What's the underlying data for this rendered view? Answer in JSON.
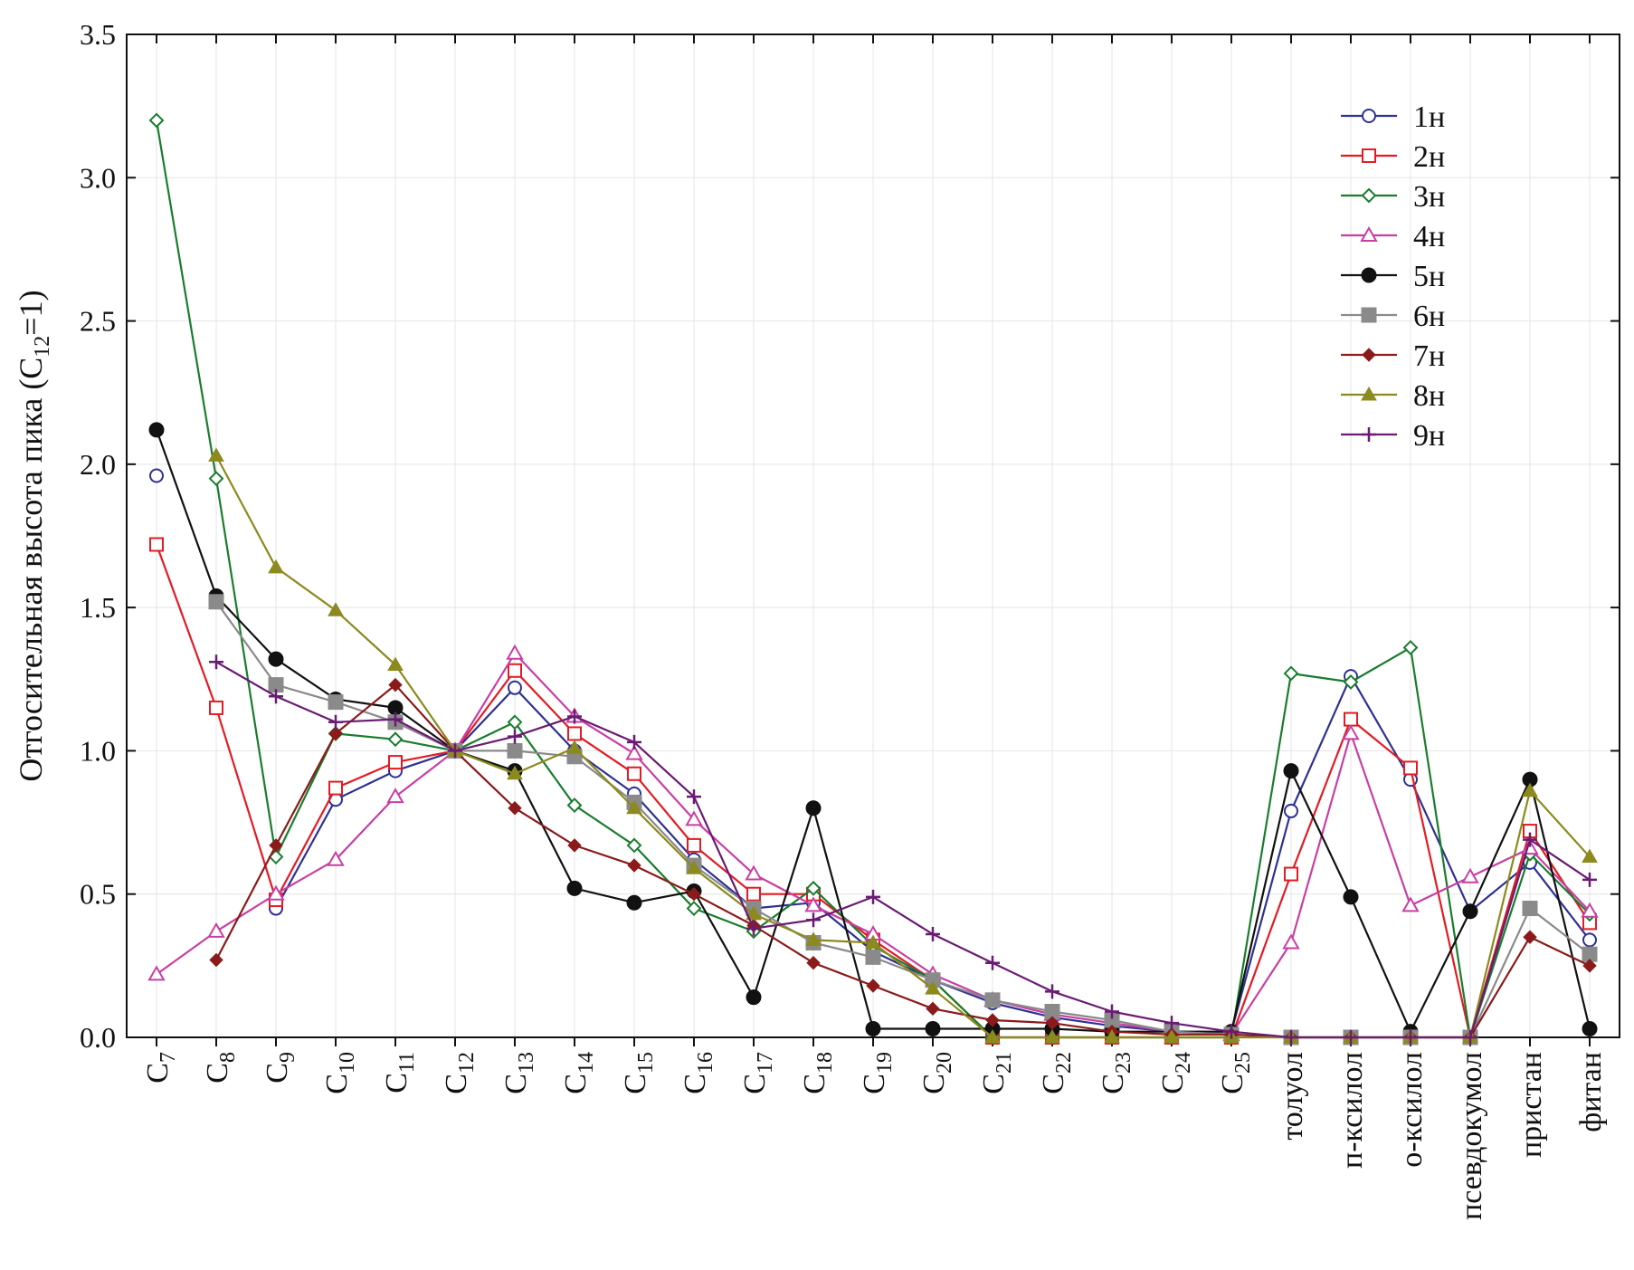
{
  "chart_data": {
    "type": "line",
    "ylabel": {
      "main": "Отгосительная высота пика (C",
      "sub": "12",
      "tail": "=1)"
    },
    "ylim": [
      0.0,
      3.5
    ],
    "yticks": [
      "0.0",
      "0.5",
      "1.0",
      "1.5",
      "2.0",
      "2.5",
      "3.0",
      "3.5"
    ],
    "ytick_values": [
      0,
      0.5,
      1.0,
      1.5,
      2.0,
      2.5,
      3.0,
      3.5
    ],
    "grid": true,
    "legend_position": "top-right",
    "categories": [
      {
        "base": "C",
        "sub": "7"
      },
      {
        "base": "C",
        "sub": "8"
      },
      {
        "base": "C",
        "sub": "9"
      },
      {
        "base": "C",
        "sub": "10"
      },
      {
        "base": "C",
        "sub": "11"
      },
      {
        "base": "C",
        "sub": "12"
      },
      {
        "base": "C",
        "sub": "13"
      },
      {
        "base": "C",
        "sub": "14"
      },
      {
        "base": "C",
        "sub": "15"
      },
      {
        "base": "C",
        "sub": "16"
      },
      {
        "base": "C",
        "sub": "17"
      },
      {
        "base": "C",
        "sub": "18"
      },
      {
        "base": "C",
        "sub": "19"
      },
      {
        "base": "C",
        "sub": "20"
      },
      {
        "base": "C",
        "sub": "21"
      },
      {
        "base": "C",
        "sub": "22"
      },
      {
        "base": "C",
        "sub": "23"
      },
      {
        "base": "C",
        "sub": "24"
      },
      {
        "base": "C",
        "sub": "25"
      },
      {
        "base": "толуол",
        "sub": ""
      },
      {
        "base": "п-ксилол",
        "sub": ""
      },
      {
        "base": "о-ксилол",
        "sub": ""
      },
      {
        "base": "псевдокумол",
        "sub": ""
      },
      {
        "base": "пристан",
        "sub": ""
      },
      {
        "base": "фитан",
        "sub": ""
      }
    ],
    "series": [
      {
        "name": "1н",
        "color": "#2e3192",
        "marker": "circle-open",
        "values": [
          1.96,
          null,
          0.45,
          0.83,
          0.93,
          1.0,
          1.22,
          1.0,
          0.85,
          0.62,
          0.45,
          0.47,
          0.3,
          0.2,
          0.12,
          0.07,
          0.04,
          0.02,
          0.02,
          0.79,
          1.26,
          0.9,
          0.44,
          0.61,
          0.34
        ]
      },
      {
        "name": "2н",
        "color": "#e31b23",
        "marker": "square-open",
        "values": [
          1.72,
          1.15,
          0.48,
          0.87,
          0.96,
          1.0,
          1.28,
          1.06,
          0.92,
          0.67,
          0.5,
          0.5,
          0.34,
          0.2,
          0.0,
          0.0,
          0.0,
          0.0,
          0.0,
          0.57,
          1.11,
          0.94,
          0.0,
          0.72,
          0.4
        ]
      },
      {
        "name": "3н",
        "color": "#1a7d2e",
        "marker": "diamond-open",
        "values": [
          3.2,
          1.95,
          0.63,
          1.06,
          1.04,
          1.0,
          1.1,
          0.81,
          0.67,
          0.45,
          0.37,
          0.52,
          0.32,
          0.2,
          0.0,
          0.0,
          0.0,
          0.0,
          0.0,
          1.27,
          1.24,
          1.36,
          0.0,
          0.64,
          0.43
        ]
      },
      {
        "name": "4н",
        "color": "#c83fa3",
        "marker": "triangle-open",
        "values": [
          0.22,
          0.37,
          0.5,
          0.62,
          0.84,
          1.0,
          1.34,
          1.12,
          0.99,
          0.76,
          0.57,
          0.46,
          0.36,
          0.22,
          0.13,
          0.08,
          0.05,
          0.02,
          0.01,
          0.33,
          1.06,
          0.46,
          0.56,
          0.66,
          0.44
        ]
      },
      {
        "name": "5н",
        "color": "#111111",
        "marker": "circle-filled",
        "values": [
          2.12,
          1.54,
          1.32,
          1.18,
          1.15,
          1.0,
          0.93,
          0.52,
          0.47,
          0.51,
          0.14,
          0.8,
          0.03,
          0.03,
          0.03,
          0.03,
          0.02,
          0.02,
          0.02,
          0.93,
          0.49,
          0.02,
          0.44,
          0.9,
          0.03
        ]
      },
      {
        "name": "6н",
        "color": "#8a8a8a",
        "marker": "square-filled",
        "values": [
          null,
          1.52,
          1.23,
          1.17,
          1.1,
          1.0,
          1.0,
          0.98,
          0.82,
          0.6,
          0.45,
          0.33,
          0.28,
          0.2,
          0.13,
          0.09,
          0.06,
          0.02,
          0.01,
          0.0,
          0.0,
          0.0,
          0.0,
          0.45,
          0.29
        ]
      },
      {
        "name": "7н",
        "color": "#8b1a1a",
        "marker": "diamond-filled",
        "values": [
          null,
          0.27,
          0.67,
          1.06,
          1.23,
          1.0,
          0.8,
          0.67,
          0.6,
          0.5,
          0.39,
          0.26,
          0.18,
          0.1,
          0.06,
          0.05,
          0.02,
          0.01,
          0.01,
          0.0,
          0.0,
          0.0,
          0.0,
          0.35,
          0.25
        ]
      },
      {
        "name": "8н",
        "color": "#8c8a1e",
        "marker": "triangle-filled",
        "values": [
          null,
          2.03,
          1.64,
          1.49,
          1.3,
          1.0,
          0.92,
          1.01,
          0.8,
          0.59,
          0.43,
          0.34,
          0.33,
          0.17,
          0.0,
          0.0,
          0.0,
          0.0,
          0.0,
          0.0,
          0.0,
          0.0,
          0.0,
          0.86,
          0.63
        ]
      },
      {
        "name": "9н",
        "color": "#6a1b73",
        "marker": "plus",
        "values": [
          null,
          1.31,
          1.19,
          1.1,
          1.11,
          1.0,
          1.05,
          1.12,
          1.03,
          0.84,
          0.38,
          0.41,
          0.49,
          0.36,
          0.26,
          0.16,
          0.09,
          0.05,
          0.02,
          0.0,
          0.0,
          0.0,
          0.0,
          0.69,
          0.55
        ]
      }
    ]
  }
}
